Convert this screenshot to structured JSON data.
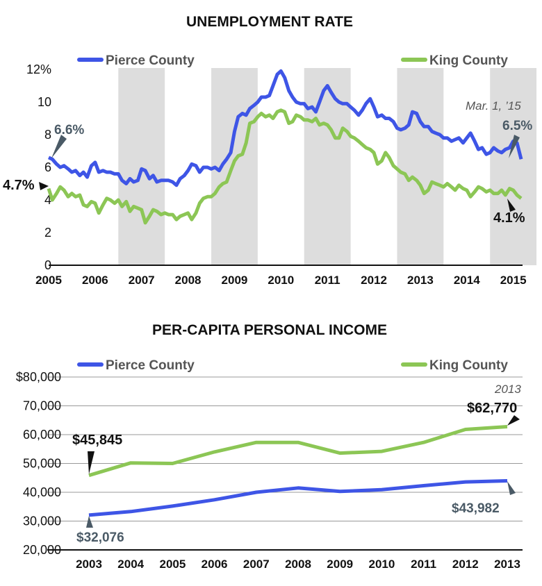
{
  "colors": {
    "pierce": "#3e55e6",
    "king": "#8cc655",
    "band": "#dddddd",
    "axis": "#111111",
    "annotation_grey": "#4a5a66"
  },
  "chart_data": [
    {
      "type": "line",
      "title": "UNEMPLOYMENT RATE",
      "legend": [
        "Pierce County",
        "King County"
      ],
      "legend_placement": "top",
      "ylim": [
        0,
        12.5
      ],
      "yticks": [
        "0",
        "2",
        "4",
        "6",
        "8",
        "10",
        "12%"
      ],
      "xticks": [
        "2005",
        "2006",
        "2007",
        "2008",
        "2009",
        "2010",
        "2011",
        "2012",
        "2013",
        "2014",
        "2015"
      ],
      "shaded_years": [
        "2006",
        "2008",
        "2010",
        "2012",
        "2014"
      ],
      "x_unit": "year",
      "series": [
        {
          "name": "Pierce County",
          "x": [
            2005.0,
            2005.08,
            2005.17,
            2005.25,
            2005.33,
            2005.42,
            2005.5,
            2005.58,
            2005.67,
            2005.75,
            2005.83,
            2005.92,
            2006.0,
            2006.08,
            2006.17,
            2006.25,
            2006.33,
            2006.42,
            2006.5,
            2006.58,
            2006.67,
            2006.75,
            2006.83,
            2006.92,
            2007.0,
            2007.08,
            2007.17,
            2007.25,
            2007.33,
            2007.42,
            2007.5,
            2007.58,
            2007.67,
            2007.75,
            2007.83,
            2007.92,
            2008.0,
            2008.08,
            2008.17,
            2008.25,
            2008.33,
            2008.42,
            2008.5,
            2008.58,
            2008.67,
            2008.75,
            2008.83,
            2008.92,
            2009.0,
            2009.08,
            2009.17,
            2009.25,
            2009.33,
            2009.42,
            2009.5,
            2009.58,
            2009.67,
            2009.75,
            2009.83,
            2009.92,
            2010.0,
            2010.08,
            2010.17,
            2010.25,
            2010.33,
            2010.42,
            2010.5,
            2010.58,
            2010.67,
            2010.75,
            2010.83,
            2010.92,
            2011.0,
            2011.08,
            2011.17,
            2011.25,
            2011.33,
            2011.42,
            2011.5,
            2011.58,
            2011.67,
            2011.75,
            2011.83,
            2011.92,
            2012.0,
            2012.08,
            2012.17,
            2012.25,
            2012.33,
            2012.42,
            2012.5,
            2012.58,
            2012.67,
            2012.75,
            2012.83,
            2012.92,
            2013.0,
            2013.08,
            2013.17,
            2013.25,
            2013.33,
            2013.42,
            2013.5,
            2013.58,
            2013.67,
            2013.75,
            2013.83,
            2013.92,
            2014.0,
            2014.08,
            2014.17,
            2014.25,
            2014.33,
            2014.42,
            2014.5,
            2014.58,
            2014.67,
            2014.75,
            2014.83,
            2014.92,
            2015.0,
            2015.08,
            2015.17
          ],
          "values": [
            6.6,
            6.5,
            6.2,
            6.0,
            6.1,
            5.9,
            5.7,
            5.8,
            5.5,
            5.7,
            5.4,
            6.1,
            6.3,
            5.7,
            5.8,
            5.7,
            5.7,
            5.6,
            5.6,
            5.2,
            5.0,
            5.3,
            5.1,
            5.2,
            5.9,
            5.8,
            5.3,
            5.5,
            5.1,
            5.2,
            5.2,
            5.2,
            5.1,
            4.9,
            5.3,
            5.5,
            5.8,
            6.2,
            6.1,
            5.7,
            6.0,
            6.0,
            5.9,
            6.0,
            5.8,
            6.2,
            6.5,
            6.9,
            8.2,
            9.1,
            9.3,
            9.2,
            9.6,
            9.8,
            10.0,
            10.3,
            10.3,
            10.4,
            11.0,
            11.7,
            11.9,
            11.5,
            10.7,
            10.3,
            10.0,
            9.9,
            9.9,
            9.6,
            9.7,
            9.4,
            10.0,
            10.7,
            11.0,
            10.6,
            10.2,
            10.0,
            9.9,
            9.9,
            9.7,
            9.5,
            9.2,
            9.5,
            9.9,
            10.2,
            9.7,
            9.1,
            9.2,
            9.0,
            9.0,
            8.8,
            8.4,
            8.3,
            8.4,
            8.6,
            9.4,
            9.3,
            8.8,
            8.5,
            8.5,
            8.2,
            8.1,
            8.0,
            7.8,
            7.8,
            7.6,
            7.7,
            7.8,
            7.5,
            7.8,
            8.1,
            7.6,
            7.1,
            7.2,
            6.8,
            6.9,
            7.2,
            7.0,
            6.9,
            7.1,
            7.2,
            7.6,
            7.5,
            6.5
          ]
        },
        {
          "name": "King County",
          "x": [
            2005.0,
            2005.08,
            2005.17,
            2005.25,
            2005.33,
            2005.42,
            2005.5,
            2005.58,
            2005.67,
            2005.75,
            2005.83,
            2005.92,
            2006.0,
            2006.08,
            2006.17,
            2006.25,
            2006.33,
            2006.42,
            2006.5,
            2006.58,
            2006.67,
            2006.75,
            2006.83,
            2006.92,
            2007.0,
            2007.08,
            2007.17,
            2007.25,
            2007.33,
            2007.42,
            2007.5,
            2007.58,
            2007.67,
            2007.75,
            2007.83,
            2007.92,
            2008.0,
            2008.08,
            2008.17,
            2008.25,
            2008.33,
            2008.42,
            2008.5,
            2008.58,
            2008.67,
            2008.75,
            2008.83,
            2008.92,
            2009.0,
            2009.08,
            2009.17,
            2009.25,
            2009.33,
            2009.42,
            2009.5,
            2009.58,
            2009.67,
            2009.75,
            2009.83,
            2009.92,
            2010.0,
            2010.08,
            2010.17,
            2010.25,
            2010.33,
            2010.42,
            2010.5,
            2010.58,
            2010.67,
            2010.75,
            2010.83,
            2010.92,
            2011.0,
            2011.08,
            2011.17,
            2011.25,
            2011.33,
            2011.42,
            2011.5,
            2011.58,
            2011.67,
            2011.75,
            2011.83,
            2011.92,
            2012.0,
            2012.08,
            2012.17,
            2012.25,
            2012.33,
            2012.42,
            2012.5,
            2012.58,
            2012.67,
            2012.75,
            2012.83,
            2012.92,
            2013.0,
            2013.08,
            2013.17,
            2013.25,
            2013.33,
            2013.42,
            2013.5,
            2013.58,
            2013.67,
            2013.75,
            2013.83,
            2013.92,
            2014.0,
            2014.08,
            2014.17,
            2014.25,
            2014.33,
            2014.42,
            2014.5,
            2014.58,
            2014.67,
            2014.75,
            2014.83,
            2014.92,
            2015.0,
            2015.08,
            2015.17
          ],
          "values": [
            4.7,
            4.0,
            4.4,
            4.8,
            4.6,
            4.2,
            4.4,
            4.2,
            4.3,
            3.7,
            3.6,
            3.9,
            3.8,
            3.2,
            3.7,
            4.1,
            4.0,
            3.8,
            4.0,
            3.6,
            3.9,
            3.3,
            3.6,
            3.5,
            3.4,
            2.6,
            3.0,
            3.4,
            3.3,
            3.1,
            3.2,
            3.1,
            3.1,
            2.8,
            3.0,
            3.1,
            3.2,
            2.8,
            3.2,
            3.8,
            4.1,
            4.2,
            4.2,
            4.4,
            4.8,
            5.0,
            5.1,
            5.8,
            6.4,
            6.7,
            6.8,
            7.5,
            8.7,
            8.8,
            9.1,
            9.3,
            9.1,
            9.2,
            9.0,
            9.4,
            9.5,
            9.4,
            8.7,
            8.8,
            9.2,
            9.1,
            8.9,
            8.9,
            8.8,
            9.0,
            8.6,
            8.7,
            8.6,
            8.3,
            7.8,
            7.8,
            8.4,
            8.2,
            7.9,
            7.8,
            7.6,
            7.4,
            7.2,
            7.1,
            6.9,
            6.2,
            6.4,
            6.9,
            6.6,
            6.1,
            5.9,
            5.7,
            5.6,
            5.2,
            5.4,
            5.2,
            4.9,
            4.4,
            4.6,
            5.1,
            5.0,
            4.9,
            4.8,
            5.0,
            4.8,
            4.6,
            4.9,
            4.7,
            4.6,
            4.2,
            4.5,
            4.8,
            4.7,
            4.5,
            4.6,
            4.4,
            4.4,
            4.6,
            4.3,
            4.7,
            4.6,
            4.3,
            4.1
          ]
        }
      ],
      "annotations": {
        "pierce_start": "6.6%",
        "king_start": "4.7%",
        "end_date": "Mar. 1, ’15",
        "pierce_end": "6.5%",
        "king_end": "4.1%"
      }
    },
    {
      "type": "line",
      "title": "PER-CAPITA PERSONAL INCOME",
      "legend": [
        "Pierce County",
        "King County"
      ],
      "legend_placement": "top",
      "ylim": [
        20000,
        80000
      ],
      "yticks": [
        "20,000",
        "30,000",
        "40,000",
        "50,000",
        "60,000",
        "70,000",
        "$80,000"
      ],
      "categories": [
        "2003",
        "2004",
        "2005",
        "2006",
        "2007",
        "2008",
        "2009",
        "2010",
        "2011",
        "2012",
        "2013"
      ],
      "series": [
        {
          "name": "Pierce County",
          "values": [
            32076,
            33300,
            35200,
            37400,
            40000,
            41500,
            40300,
            40900,
            42300,
            43600,
            43982
          ]
        },
        {
          "name": "King County",
          "values": [
            45845,
            50200,
            50000,
            54000,
            57300,
            57300,
            53600,
            54200,
            57300,
            61800,
            62770
          ]
        }
      ],
      "annotations": {
        "king_start": "$45,845",
        "pierce_start": "$32,076",
        "end_year": "2013",
        "king_end": "$62,770",
        "pierce_end": "$43,982"
      }
    }
  ]
}
